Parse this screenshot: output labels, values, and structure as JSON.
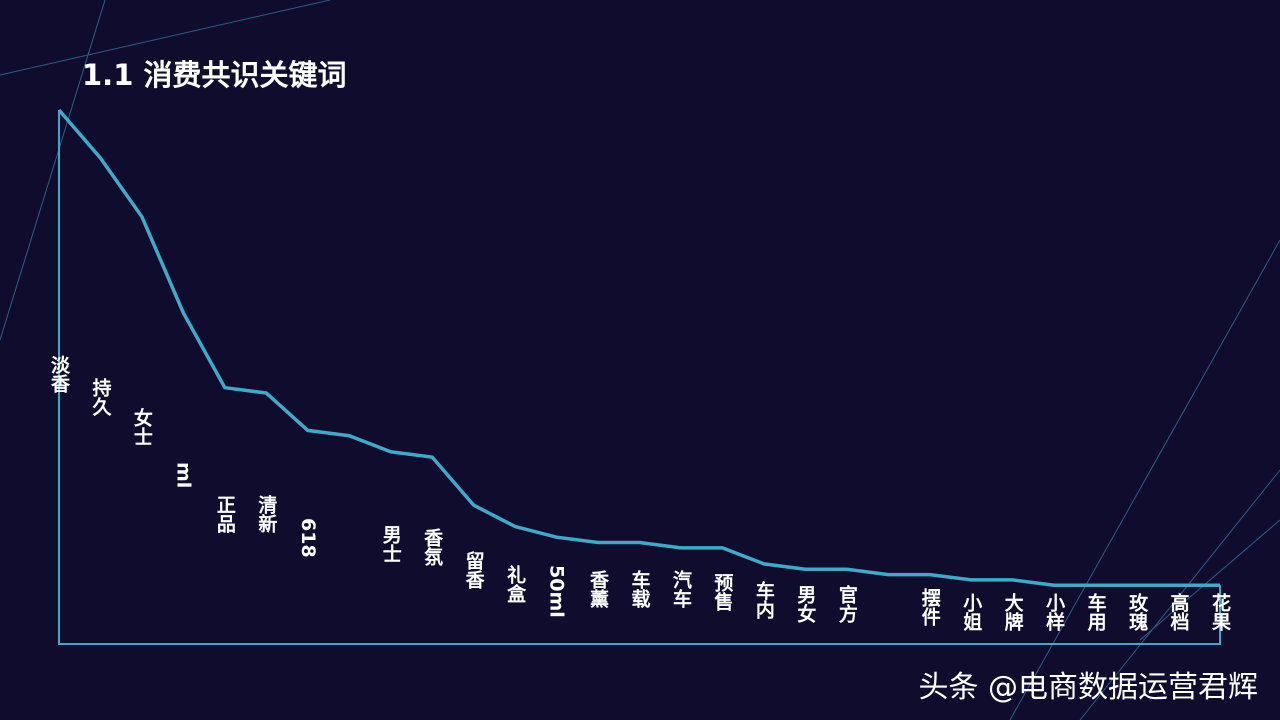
{
  "chart_data": {
    "type": "line",
    "title": "1.1 消费共识关键词",
    "categories": [
      "淡香",
      "持久",
      "女士",
      "ml",
      "正品",
      "清新",
      "618",
      null,
      "男士",
      "香氛",
      "留香",
      "礼盒",
      "50ml",
      "香薰",
      "车载",
      "汽车",
      "预售",
      "车内",
      "男女",
      "官方",
      null,
      "摆件",
      "小姐",
      "大牌",
      "小样",
      "车用",
      "玫瑰",
      "高档",
      "花果"
    ],
    "values": [
      100,
      91,
      80,
      62,
      48,
      47,
      40,
      39,
      36,
      35,
      26,
      22,
      20,
      19,
      19,
      18,
      18,
      15,
      14,
      14,
      13,
      13,
      12,
      12,
      11,
      11,
      11,
      11,
      11
    ],
    "color": "#3fa9c9",
    "ylim": [
      0,
      100
    ]
  },
  "watermark": "头条 @电商数据运营君辉"
}
